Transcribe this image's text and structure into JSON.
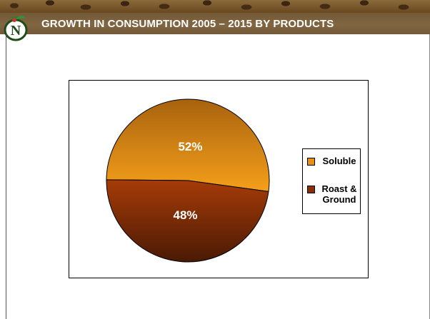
{
  "header": {
    "title": "GROWTH IN CONSUMPTION 2005 – 2015 BY PRODUCTS"
  },
  "logo": {
    "icon": "coffee-cherry-logo-icon",
    "monogram_color": "#1f4d1a",
    "accent_color": "#c0392b"
  },
  "chart_data": {
    "type": "pie",
    "title": "",
    "categories": [
      "Soluble",
      "Roast & Ground"
    ],
    "values": [
      52,
      48
    ],
    "value_labels": [
      "52%",
      "48%"
    ],
    "colors": [
      "#e8900f",
      "#8a2e05"
    ],
    "legend_position": "right"
  },
  "legend": {
    "items": [
      {
        "label_lines": [
          "Soluble"
        ],
        "color": "#e8900f"
      },
      {
        "label_lines": [
          "Roast &",
          "Ground"
        ],
        "color": "#8a2e05"
      }
    ]
  }
}
